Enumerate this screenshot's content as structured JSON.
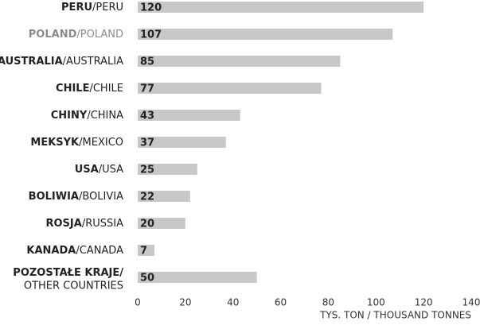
{
  "chart_data": {
    "type": "bar",
    "orientation": "horizontal",
    "categories": [
      [
        "PERU",
        "/PERU"
      ],
      [
        "POLAND",
        "/POLAND"
      ],
      [
        "AUSTRALIA",
        "/AUSTRALIA"
      ],
      [
        "CHILE",
        "/CHILE"
      ],
      [
        "CHINY",
        "/CHINA"
      ],
      [
        "MEKSYK",
        "/MEXICO"
      ],
      [
        "USA",
        "/USA"
      ],
      [
        "BOLIWIA",
        "/BOLIVIA"
      ],
      [
        "ROSJA",
        "/RUSSIA"
      ],
      [
        "KANADA",
        "/CANADA"
      ],
      [
        "POZOSTAŁE KRAJE/",
        "OTHER COUNTRIES"
      ]
    ],
    "label_colors": [
      "#222222",
      "#8c8c8c",
      "#222222",
      "#222222",
      "#222222",
      "#222222",
      "#222222",
      "#222222",
      "#222222",
      "#222222",
      "#222222"
    ],
    "values": [
      120,
      107,
      85,
      77,
      43,
      37,
      25,
      22,
      20,
      7,
      50
    ],
    "color": "#c8c8c8",
    "xlim": [
      0,
      140
    ],
    "xticks": [
      0,
      20,
      40,
      60,
      80,
      100,
      120,
      140
    ],
    "xlabel": "TYS. TON / THOUSAND TONNES",
    "grid": false
  }
}
